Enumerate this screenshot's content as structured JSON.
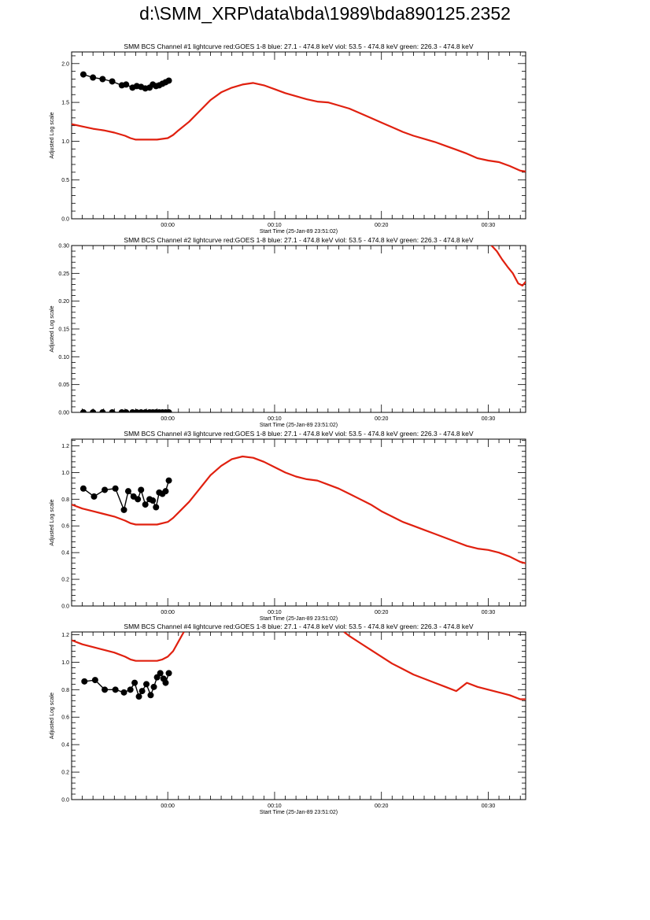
{
  "page_title": "d:\\SMM_XRP\\data\\bda\\1989\\bda890125.2352",
  "colors": {
    "goes": "#e0200f",
    "bcs": "#000000",
    "axis": "#000000"
  },
  "chart_data": [
    {
      "type": "line",
      "title": "SMM BCS Channel #1 lightcurve  red:GOES 1-8  blue: 27.1 - 474.8 keV  viol: 53.5 - 474.8 keV  green: 226.3 - 474.8 keV",
      "xlabel": "Start Time (25-Jan-89 23:51:02)",
      "ylabel": "Adjusted Log scale",
      "xlim": [
        -9,
        33.5
      ],
      "ylim": [
        0,
        2.15
      ],
      "x_ticks": [
        {
          "v": 0,
          "label": "00:00"
        },
        {
          "v": 10,
          "label": "00:10"
        },
        {
          "v": 20,
          "label": "00:20"
        },
        {
          "v": 30,
          "label": "00:30"
        }
      ],
      "y_ticks": [
        {
          "v": 0,
          "label": "0.0"
        },
        {
          "v": 0.5,
          "label": "0.5"
        },
        {
          "v": 1.0,
          "label": "1.0"
        },
        {
          "v": 1.5,
          "label": "1.5"
        },
        {
          "v": 2.0,
          "label": "2.0"
        }
      ],
      "series": [
        {
          "color": "red",
          "style": "line",
          "x": [
            -9,
            -8,
            -7,
            -6,
            -5,
            -4,
            -3.5,
            -3,
            -2,
            -1,
            0,
            0.5,
            1,
            2,
            3,
            4,
            5,
            6,
            7,
            8,
            9,
            10,
            11,
            12,
            13,
            14,
            15,
            16,
            17,
            18,
            19,
            20,
            21,
            22,
            23,
            24,
            25,
            26,
            27,
            28,
            29,
            30,
            31,
            32,
            33,
            33.5
          ],
          "y": [
            1.22,
            1.19,
            1.16,
            1.14,
            1.11,
            1.07,
            1.04,
            1.02,
            1.02,
            1.02,
            1.04,
            1.08,
            1.14,
            1.25,
            1.39,
            1.53,
            1.63,
            1.69,
            1.73,
            1.75,
            1.72,
            1.67,
            1.62,
            1.58,
            1.54,
            1.51,
            1.5,
            1.46,
            1.42,
            1.36,
            1.3,
            1.24,
            1.18,
            1.12,
            1.07,
            1.03,
            0.99,
            0.94,
            0.89,
            0.84,
            0.78,
            0.75,
            0.73,
            0.68,
            0.62,
            0.61
          ]
        },
        {
          "color": "black",
          "style": "points",
          "x": [
            -7.9,
            -7.0,
            -6.1,
            -5.2,
            -4.3,
            -3.9,
            -3.3,
            -2.9,
            -2.5,
            -2.1,
            -1.7,
            -1.4,
            -1.1,
            -0.8,
            -0.5,
            -0.2,
            0.1
          ],
          "y": [
            1.86,
            1.82,
            1.8,
            1.77,
            1.72,
            1.73,
            1.69,
            1.71,
            1.7,
            1.68,
            1.69,
            1.73,
            1.71,
            1.72,
            1.74,
            1.76,
            1.78
          ]
        }
      ]
    },
    {
      "type": "line",
      "title": "SMM BCS Channel #2 lightcurve  red:GOES 1-8  blue: 27.1 - 474.8 keV  viol: 53.5 - 474.8 keV  green: 226.3 - 474.8 keV",
      "xlabel": "Start Time (25-Jan-89 23:51:02)",
      "ylabel": "Adjusted Log scale",
      "xlim": [
        -9,
        33.5
      ],
      "ylim": [
        0,
        0.3
      ],
      "x_ticks": [
        {
          "v": 0,
          "label": "00:00"
        },
        {
          "v": 10,
          "label": "00:10"
        },
        {
          "v": 20,
          "label": "00:20"
        },
        {
          "v": 30,
          "label": "00:30"
        }
      ],
      "y_ticks": [
        {
          "v": 0,
          "label": "0.00"
        },
        {
          "v": 0.05,
          "label": "0.05"
        },
        {
          "v": 0.1,
          "label": "0.10"
        },
        {
          "v": 0.15,
          "label": "0.15"
        },
        {
          "v": 0.2,
          "label": "0.20"
        },
        {
          "v": 0.25,
          "label": "0.25"
        },
        {
          "v": 0.3,
          "label": "0.30"
        }
      ],
      "series": [
        {
          "color": "red",
          "style": "line",
          "x": [
            30.3,
            30.8,
            31.3,
            31.8,
            32.3,
            32.8,
            33.2,
            33.5
          ],
          "y": [
            0.3,
            0.29,
            0.275,
            0.262,
            0.25,
            0.232,
            0.228,
            0.235
          ]
        },
        {
          "color": "black",
          "style": "points",
          "x": [
            -7.9,
            -7.0,
            -6.1,
            -5.2,
            -4.3,
            -3.9,
            -3.3,
            -2.9,
            -2.5,
            -2.1,
            -1.7,
            -1.4,
            -1.1,
            -0.8,
            -0.5,
            -0.2,
            0.1
          ],
          "y": [
            0,
            0,
            0,
            0,
            0,
            0,
            0,
            0,
            0,
            0,
            0,
            0,
            0,
            0,
            0,
            0,
            0
          ]
        }
      ]
    },
    {
      "type": "line",
      "title": "SMM BCS Channel #3 lightcurve  red:GOES 1-8  blue: 27.1 - 474.8 keV  viol: 53.5 - 474.8 keV  green: 226.3 - 474.8 keV",
      "xlabel": "Start Time (25-Jan-89 23:51:02)",
      "ylabel": "Adjusted Log scale",
      "xlim": [
        -9,
        33.5
      ],
      "ylim": [
        0,
        1.25
      ],
      "x_ticks": [
        {
          "v": 0,
          "label": "00:00"
        },
        {
          "v": 10,
          "label": "00:10"
        },
        {
          "v": 20,
          "label": "00:20"
        },
        {
          "v": 30,
          "label": "00:30"
        }
      ],
      "y_ticks": [
        {
          "v": 0,
          "label": "0.0"
        },
        {
          "v": 0.2,
          "label": "0.2"
        },
        {
          "v": 0.4,
          "label": "0.4"
        },
        {
          "v": 0.6,
          "label": "0.6"
        },
        {
          "v": 0.8,
          "label": "0.8"
        },
        {
          "v": 1.0,
          "label": "1.0"
        },
        {
          "v": 1.2,
          "label": "1.2"
        }
      ],
      "series": [
        {
          "color": "red",
          "style": "line",
          "x": [
            -9,
            -8,
            -7,
            -6,
            -5,
            -4,
            -3.5,
            -3,
            -2,
            -1,
            0,
            0.5,
            1,
            2,
            3,
            4,
            5,
            6,
            7,
            8,
            9,
            10,
            11,
            12,
            13,
            14,
            15,
            16,
            17,
            18,
            19,
            20,
            21,
            22,
            23,
            24,
            25,
            26,
            27,
            28,
            29,
            30,
            31,
            32,
            33,
            33.5
          ],
          "y": [
            0.76,
            0.73,
            0.71,
            0.69,
            0.67,
            0.64,
            0.62,
            0.61,
            0.61,
            0.61,
            0.63,
            0.66,
            0.7,
            0.78,
            0.88,
            0.98,
            1.05,
            1.1,
            1.12,
            1.11,
            1.08,
            1.04,
            1.0,
            0.97,
            0.95,
            0.94,
            0.91,
            0.88,
            0.84,
            0.8,
            0.76,
            0.71,
            0.67,
            0.63,
            0.6,
            0.57,
            0.54,
            0.51,
            0.48,
            0.45,
            0.43,
            0.42,
            0.4,
            0.37,
            0.33,
            0.32
          ]
        },
        {
          "color": "black",
          "style": "points",
          "x": [
            -7.9,
            -6.9,
            -5.9,
            -4.9,
            -4.1,
            -3.7,
            -3.2,
            -2.8,
            -2.5,
            -2.1,
            -1.7,
            -1.4,
            -1.1,
            -0.8,
            -0.5,
            -0.2,
            0.1
          ],
          "y": [
            0.88,
            0.82,
            0.87,
            0.88,
            0.72,
            0.86,
            0.82,
            0.8,
            0.87,
            0.76,
            0.8,
            0.79,
            0.74,
            0.85,
            0.84,
            0.86,
            0.94
          ]
        }
      ]
    },
    {
      "type": "line",
      "title": "SMM BCS Channel #4 lightcurve  red:GOES 1-8  blue: 27.1 - 474.8 keV  viol: 53.5 - 474.8 keV  green: 226.3 - 474.8 keV",
      "xlabel": "Start Time (25-Jan-89 23:51:02)",
      "ylabel": "Adjusted Log scale",
      "xlim": [
        -9,
        33.5
      ],
      "ylim": [
        0,
        1.22
      ],
      "x_ticks": [
        {
          "v": 0,
          "label": "00:00"
        },
        {
          "v": 10,
          "label": "00:10"
        },
        {
          "v": 20,
          "label": "00:20"
        },
        {
          "v": 30,
          "label": "00:30"
        }
      ],
      "y_ticks": [
        {
          "v": 0,
          "label": "0.0"
        },
        {
          "v": 0.2,
          "label": "0.2"
        },
        {
          "v": 0.4,
          "label": "0.4"
        },
        {
          "v": 0.6,
          "label": "0.6"
        },
        {
          "v": 0.8,
          "label": "0.8"
        },
        {
          "v": 1.0,
          "label": "1.0"
        },
        {
          "v": 1.2,
          "label": "1.2"
        }
      ],
      "series": [
        {
          "color": "red",
          "style": "line",
          "x": [
            -9,
            -8,
            -7,
            -6,
            -5,
            -4,
            -3.5,
            -3,
            -2,
            -1,
            -0.5,
            0,
            0.5,
            1,
            1.5
          ],
          "y": [
            1.16,
            1.13,
            1.11,
            1.09,
            1.07,
            1.04,
            1.02,
            1.01,
            1.01,
            1.01,
            1.02,
            1.04,
            1.08,
            1.15,
            1.22
          ]
        },
        {
          "color": "red",
          "style": "line",
          "x": [
            16.5,
            17,
            18,
            19,
            20,
            21,
            22,
            23,
            24,
            25,
            26,
            27,
            28,
            29,
            30,
            31,
            32,
            33,
            33.5
          ],
          "y": [
            1.22,
            1.19,
            1.14,
            1.09,
            1.04,
            0.99,
            0.95,
            0.91,
            0.88,
            0.85,
            0.82,
            0.79,
            0.85,
            0.82,
            0.8,
            0.78,
            0.76,
            0.73,
            0.73
          ]
        },
        {
          "color": "black",
          "style": "points",
          "x": [
            -7.8,
            -6.8,
            -5.9,
            -4.9,
            -4.1,
            -3.5,
            -3.1,
            -2.7,
            -2.4,
            -2.0,
            -1.6,
            -1.3,
            -1.0,
            -0.7,
            -0.4,
            -0.2,
            0.1
          ],
          "y": [
            0.86,
            0.87,
            0.8,
            0.8,
            0.78,
            0.8,
            0.85,
            0.75,
            0.79,
            0.84,
            0.76,
            0.82,
            0.89,
            0.92,
            0.88,
            0.85,
            0.92
          ]
        }
      ]
    }
  ]
}
